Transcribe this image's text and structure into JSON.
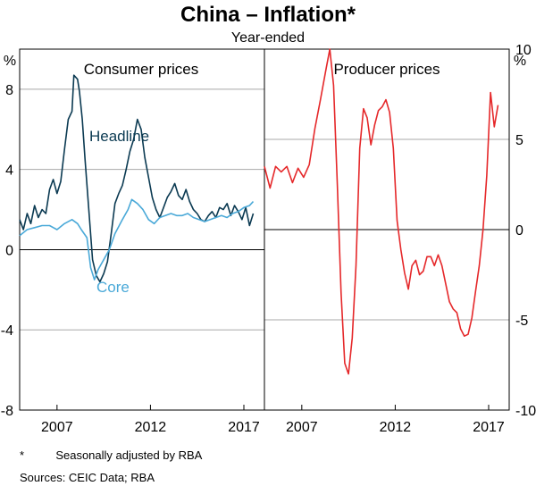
{
  "chart_data": {
    "type": "line",
    "title": "China – Inflation*",
    "subtitle": "Year-ended",
    "panels": [
      {
        "name": "consumer",
        "title": "Consumer prices",
        "y_unit": "%",
        "ylim": [
          -8,
          10
        ],
        "yticks": [
          -8,
          -4,
          0,
          4,
          8
        ],
        "xlim": [
          2005.0,
          2018.1
        ],
        "xticks": [
          2007,
          2012,
          2017
        ],
        "series": [
          {
            "name": "Headline",
            "color": "#0b3a52",
            "x": [
              2005.0,
              2005.2,
              2005.4,
              2005.6,
              2005.8,
              2006.0,
              2006.2,
              2006.4,
              2006.6,
              2006.8,
              2007.0,
              2007.2,
              2007.4,
              2007.6,
              2007.8,
              2007.9,
              2008.1,
              2008.2,
              2008.35,
              2008.5,
              2008.7,
              2008.9,
              2009.1,
              2009.3,
              2009.5,
              2009.7,
              2009.9,
              2010.1,
              2010.3,
              2010.5,
              2010.7,
              2010.9,
              2011.1,
              2011.3,
              2011.5,
              2011.7,
              2011.9,
              2012.1,
              2012.3,
              2012.5,
              2012.7,
              2012.9,
              2013.1,
              2013.3,
              2013.5,
              2013.7,
              2013.9,
              2014.1,
              2014.3,
              2014.5,
              2014.7,
              2014.9,
              2015.1,
              2015.3,
              2015.5,
              2015.7,
              2015.9,
              2016.1,
              2016.3,
              2016.5,
              2016.7,
              2016.9,
              2017.1,
              2017.3,
              2017.5
            ],
            "values": [
              1.5,
              1.0,
              1.8,
              1.3,
              2.2,
              1.6,
              2.0,
              1.8,
              3.0,
              3.5,
              2.8,
              3.4,
              5.0,
              6.5,
              6.9,
              8.7,
              8.5,
              7.9,
              6.5,
              4.5,
              2.0,
              -0.5,
              -1.3,
              -1.6,
              -1.2,
              -0.6,
              0.8,
              2.3,
              2.8,
              3.2,
              4.0,
              4.9,
              5.5,
              6.5,
              6.0,
              4.6,
              3.6,
              2.6,
              2.0,
              1.6,
              2.1,
              2.6,
              2.9,
              3.3,
              2.7,
              2.5,
              3.0,
              2.4,
              2.0,
              1.8,
              1.5,
              1.4,
              1.7,
              1.9,
              1.6,
              2.1,
              2.0,
              2.3,
              1.7,
              2.2,
              1.9,
              1.5,
              2.1,
              1.2,
              1.8
            ]
          },
          {
            "name": "Core",
            "color": "#4aa9d8",
            "x": [
              2005.0,
              2005.4,
              2005.8,
              2006.2,
              2006.6,
              2007.0,
              2007.4,
              2007.8,
              2008.1,
              2008.3,
              2008.6,
              2008.8,
              2009.0,
              2009.2,
              2009.5,
              2009.8,
              2010.1,
              2010.5,
              2010.8,
              2011.0,
              2011.3,
              2011.6,
              2011.9,
              2012.2,
              2012.5,
              2012.8,
              2013.1,
              2013.4,
              2013.7,
              2014.0,
              2014.3,
              2014.6,
              2014.9,
              2015.2,
              2015.5,
              2015.8,
              2016.1,
              2016.4,
              2016.7,
              2017.0,
              2017.3,
              2017.5
            ],
            "values": [
              0.7,
              1.0,
              1.1,
              1.2,
              1.2,
              1.0,
              1.3,
              1.5,
              1.3,
              1.0,
              0.6,
              -0.9,
              -1.5,
              -1.0,
              -0.5,
              0.0,
              0.8,
              1.5,
              2.0,
              2.5,
              2.3,
              2.0,
              1.5,
              1.3,
              1.6,
              1.7,
              1.8,
              1.7,
              1.7,
              1.8,
              1.6,
              1.5,
              1.4,
              1.5,
              1.6,
              1.7,
              1.6,
              1.8,
              1.9,
              2.1,
              2.2,
              2.4
            ]
          }
        ]
      },
      {
        "name": "producer",
        "title": "Producer prices",
        "y_unit": "%",
        "ylim": [
          -10,
          10
        ],
        "yticks": [
          -10,
          -5,
          0,
          5,
          10
        ],
        "xlim": [
          2005.0,
          2018.1
        ],
        "xticks": [
          2007,
          2012,
          2017
        ],
        "series": [
          {
            "name": "Producer prices",
            "color": "#e5282a",
            "x": [
              2005.0,
              2005.3,
              2005.6,
              2005.9,
              2006.2,
              2006.5,
              2006.8,
              2007.1,
              2007.4,
              2007.7,
              2008.0,
              2008.3,
              2008.5,
              2008.7,
              2008.9,
              2009.1,
              2009.3,
              2009.5,
              2009.7,
              2009.9,
              2010.1,
              2010.3,
              2010.5,
              2010.7,
              2010.9,
              2011.1,
              2011.3,
              2011.5,
              2011.7,
              2011.9,
              2012.1,
              2012.3,
              2012.5,
              2012.7,
              2012.9,
              2013.1,
              2013.3,
              2013.5,
              2013.7,
              2013.9,
              2014.1,
              2014.3,
              2014.5,
              2014.7,
              2014.9,
              2015.1,
              2015.3,
              2015.5,
              2015.7,
              2015.9,
              2016.1,
              2016.3,
              2016.5,
              2016.7,
              2016.9,
              2017.1,
              2017.3,
              2017.5
            ],
            "values": [
              3.5,
              2.3,
              3.5,
              3.2,
              3.5,
              2.6,
              3.4,
              2.9,
              3.6,
              5.6,
              7.2,
              8.9,
              10.0,
              8.0,
              2.5,
              -3.5,
              -7.4,
              -8.0,
              -6.0,
              -2.0,
              4.5,
              6.7,
              6.2,
              4.7,
              5.8,
              6.6,
              6.8,
              7.2,
              6.5,
              4.5,
              0.5,
              -1.1,
              -2.4,
              -3.3,
              -2.0,
              -1.7,
              -2.5,
              -2.3,
              -1.5,
              -1.5,
              -2.0,
              -1.4,
              -2.0,
              -3.0,
              -4.0,
              -4.4,
              -4.6,
              -5.5,
              -5.9,
              -5.8,
              -4.9,
              -3.4,
              -2.0,
              0.0,
              3.0,
              7.6,
              5.7,
              6.9
            ]
          }
        ]
      }
    ],
    "series_labels": {
      "headline": "Headline",
      "core": "Core"
    },
    "axis_unit_left": "%",
    "axis_unit_right": "%"
  },
  "footnotes": {
    "marker": "*",
    "note": "Seasonally adjusted by RBA",
    "sources": "Sources: CEIC Data; RBA"
  }
}
